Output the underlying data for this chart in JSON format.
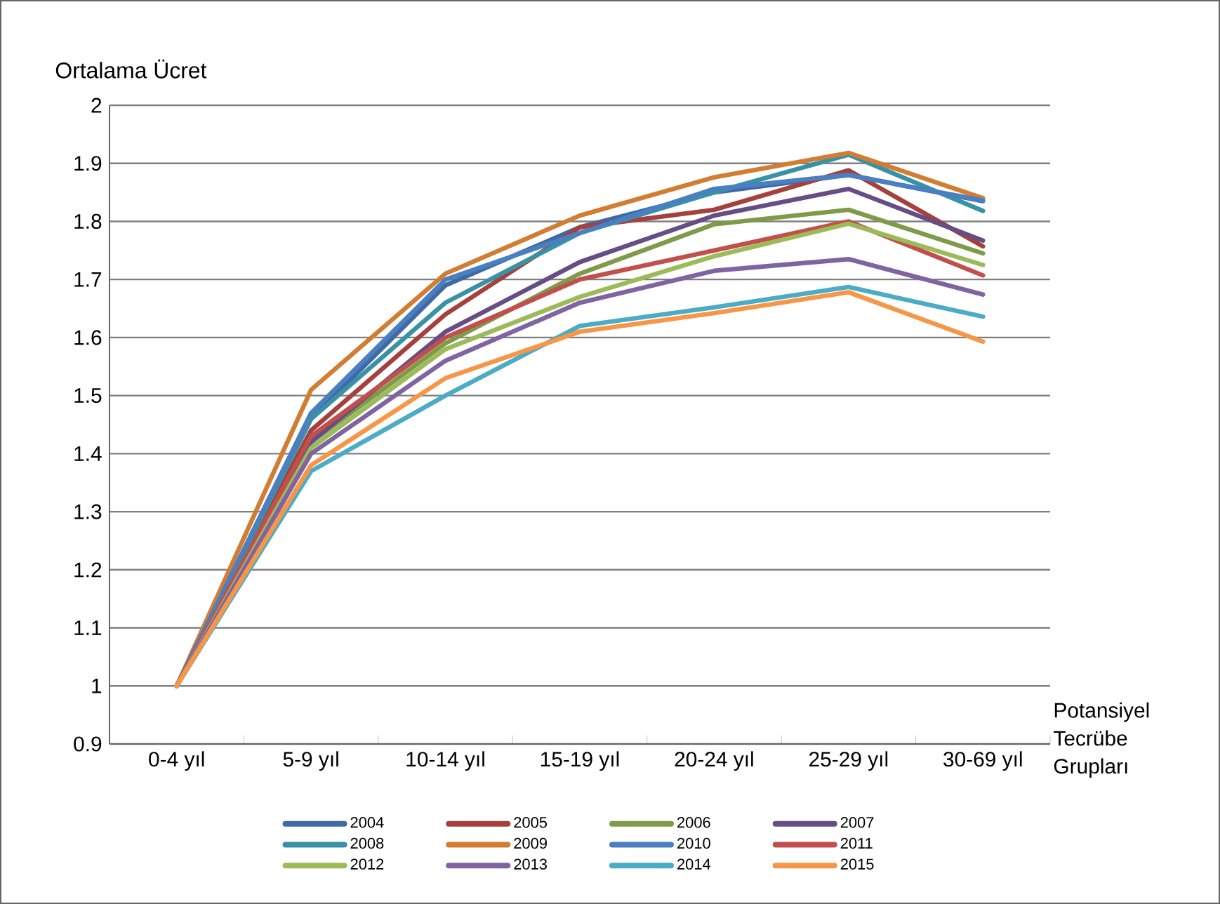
{
  "chart_data": {
    "type": "line",
    "ylabel": "Ortalama Ücret",
    "xlabel": "Potansiyel Tecrübe Grupları",
    "categories": [
      "0-4 yıl",
      "5-9 yıl",
      "10-14 yıl",
      "15-19 yıl",
      "20-24 yıl",
      "25-29 yıl",
      "30-69 yıl"
    ],
    "ylim": [
      0.9,
      2
    ],
    "yticks": [
      0.9,
      1,
      1.1,
      1.2,
      1.3,
      1.4,
      1.5,
      1.6,
      1.7,
      1.8,
      1.9,
      2
    ],
    "grid": "y",
    "legend": "bottom",
    "marker": "none",
    "line_style": "solid",
    "series": [
      {
        "name": "2004",
        "color": "#3f6aa6",
        "values": [
          1,
          1.46,
          1.69,
          1.79,
          1.85,
          1.88,
          1.835
        ]
      },
      {
        "name": "2005",
        "color": "#a5403d",
        "values": [
          1,
          1.44,
          1.64,
          1.79,
          1.82,
          1.888,
          1.757
        ]
      },
      {
        "name": "2006",
        "color": "#7f9a48",
        "values": [
          1,
          1.42,
          1.59,
          1.71,
          1.795,
          1.82,
          1.745
        ]
      },
      {
        "name": "2007",
        "color": "#664d85",
        "values": [
          1,
          1.42,
          1.61,
          1.73,
          1.81,
          1.856,
          1.767
        ]
      },
      {
        "name": "2008",
        "color": "#3991a6",
        "values": [
          1,
          1.46,
          1.66,
          1.78,
          1.85,
          1.915,
          1.818
        ]
      },
      {
        "name": "2009",
        "color": "#d27d32",
        "values": [
          1,
          1.51,
          1.71,
          1.81,
          1.876,
          1.918,
          1.84
        ]
      },
      {
        "name": "2010",
        "color": "#4a7fc1",
        "values": [
          1,
          1.47,
          1.7,
          1.78,
          1.856,
          1.88,
          1.836
        ]
      },
      {
        "name": "2011",
        "color": "#c24f4c",
        "values": [
          1,
          1.43,
          1.6,
          1.7,
          1.75,
          1.8,
          1.707
        ]
      },
      {
        "name": "2012",
        "color": "#9bbb59",
        "values": [
          1,
          1.41,
          1.58,
          1.67,
          1.74,
          1.796,
          1.725
        ]
      },
      {
        "name": "2013",
        "color": "#8064a2",
        "values": [
          1,
          1.4,
          1.56,
          1.66,
          1.715,
          1.735,
          1.674
        ]
      },
      {
        "name": "2014",
        "color": "#4bacc6",
        "values": [
          1,
          1.37,
          1.5,
          1.62,
          1.652,
          1.687,
          1.636
        ]
      },
      {
        "name": "2015",
        "color": "#f79646",
        "values": [
          1,
          1.38,
          1.53,
          1.61,
          1.642,
          1.678,
          1.593
        ]
      }
    ]
  }
}
